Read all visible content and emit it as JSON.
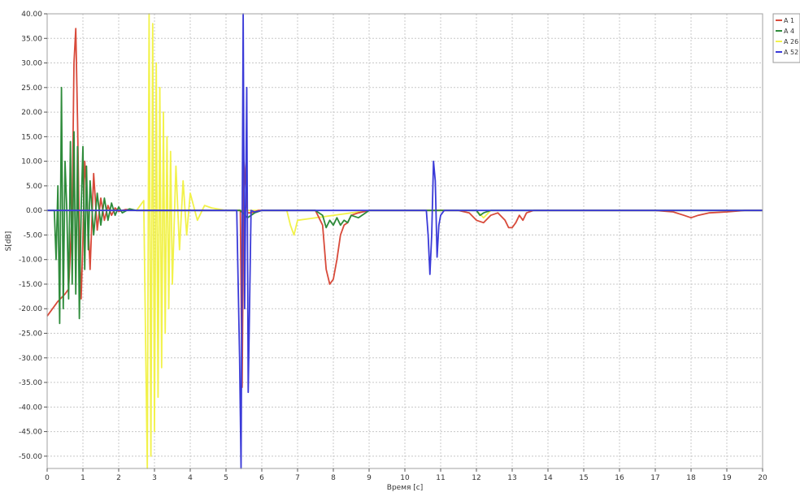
{
  "chart_data": {
    "type": "line",
    "title": "",
    "xlabel": "Время [c]",
    "ylabel": "S[dB]",
    "xlim": [
      0,
      20
    ],
    "ylim": [
      -52.5,
      40
    ],
    "x_ticks": [
      0,
      1,
      2,
      3,
      4,
      5,
      6,
      7,
      8,
      9,
      10,
      11,
      12,
      13,
      14,
      15,
      16,
      17,
      18,
      19,
      20
    ],
    "y_ticks": [
      40,
      35,
      30,
      25,
      20,
      15,
      10,
      5,
      0,
      -5,
      -10,
      -15,
      -20,
      -25,
      -30,
      -35,
      -40,
      -45,
      -50
    ],
    "y_tick_labels": [
      "40.00",
      "35.00",
      "30.00",
      "25.00",
      "20.00",
      "15.00",
      "10.00",
      "5.00",
      "0.00",
      "-5.00",
      "-10.00",
      "-15.00",
      "-20.00",
      "-25.00",
      "-30.00",
      "-35.00",
      "-40.00",
      "-45.00",
      "-50.00"
    ],
    "grid": true,
    "legend_position": "top-right-outside",
    "series": [
      {
        "name": "A 1",
        "color": "#d84a3a",
        "x": [
          0,
          0.3,
          0.5,
          0.6,
          0.7,
          0.75,
          0.8,
          0.85,
          0.9,
          0.95,
          1.0,
          1.05,
          1.1,
          1.2,
          1.3,
          1.4,
          1.5,
          1.6,
          1.7,
          1.8,
          1.9,
          2.0,
          2.2,
          2.5,
          3.0,
          5.4,
          5.45,
          5.5,
          5.6,
          5.7,
          5.9,
          6.5,
          7.0,
          7.5,
          7.7,
          7.8,
          7.9,
          8.0,
          8.1,
          8.2,
          8.3,
          8.4,
          8.5,
          8.7,
          9.0,
          10.0,
          11.0,
          11.5,
          11.8,
          12.0,
          12.2,
          12.4,
          12.6,
          12.8,
          12.9,
          13.0,
          13.1,
          13.2,
          13.3,
          13.4,
          13.6,
          14.0,
          15.0,
          16.0,
          17.0,
          17.5,
          17.8,
          18.0,
          18.2,
          18.5,
          19.0,
          19.5,
          20.0
        ],
        "y": [
          -21.5,
          -18.5,
          -17.0,
          -16.0,
          0,
          30.0,
          37.0,
          18.0,
          -5.0,
          -18.0,
          -6.0,
          10.0,
          5.0,
          -12.0,
          7.5,
          -4.0,
          2.5,
          -2.0,
          1.0,
          -1.0,
          0.5,
          -0.2,
          0.2,
          0,
          0,
          0,
          -36.0,
          10.0,
          -0.5,
          -0.5,
          0,
          0,
          0,
          0,
          -3.0,
          -12.0,
          -15.0,
          -14.0,
          -10.0,
          -5.0,
          -3.0,
          -2.5,
          -1.0,
          -0.5,
          0,
          0,
          0,
          0,
          -0.5,
          -2.0,
          -2.5,
          -1.0,
          -0.5,
          -2.0,
          -3.5,
          -3.5,
          -2.5,
          -1.0,
          -2.0,
          -0.5,
          0,
          0,
          0,
          0,
          0,
          -0.3,
          -1.0,
          -1.5,
          -1.0,
          -0.5,
          -0.3,
          0,
          0
        ]
      },
      {
        "name": "A 4",
        "color": "#2e8b3a",
        "x": [
          0,
          0.2,
          0.25,
          0.3,
          0.35,
          0.4,
          0.45,
          0.5,
          0.55,
          0.6,
          0.65,
          0.7,
          0.75,
          0.8,
          0.85,
          0.9,
          0.95,
          1.0,
          1.05,
          1.1,
          1.15,
          1.2,
          1.3,
          1.4,
          1.5,
          1.6,
          1.7,
          1.8,
          1.9,
          2.0,
          2.1,
          2.3,
          2.5,
          3.0,
          5.4,
          5.6,
          5.8,
          6.0,
          7.0,
          7.5,
          7.7,
          7.8,
          7.9,
          8.0,
          8.1,
          8.2,
          8.3,
          8.4,
          8.5,
          8.7,
          8.9,
          9.0,
          10.0,
          12.0,
          12.1,
          12.2,
          12.4,
          13.0,
          14.0,
          20.0
        ],
        "y": [
          0,
          0,
          -10.0,
          5.0,
          -23.0,
          25.0,
          -20.0,
          10.0,
          0,
          -18.0,
          14.0,
          -15.0,
          16.0,
          -17.0,
          13.0,
          -22.0,
          0,
          13.0,
          -12.0,
          9.0,
          -8.0,
          6.0,
          -5.0,
          3.5,
          -3.0,
          2.5,
          -2.0,
          1.5,
          -1.0,
          0.7,
          -0.5,
          0.3,
          0,
          0,
          0,
          -1.5,
          -0.5,
          0,
          0,
          0,
          -1.0,
          -3.5,
          -2.0,
          -3.0,
          -1.5,
          -3.0,
          -2.0,
          -2.5,
          -1.0,
          -1.5,
          -0.5,
          0,
          0,
          0,
          -1.0,
          -0.5,
          0,
          0,
          0,
          0
        ]
      },
      {
        "name": "A 26",
        "color": "#f2f24a",
        "x": [
          0,
          2.5,
          2.7,
          2.8,
          2.85,
          2.9,
          2.95,
          3.0,
          3.05,
          3.1,
          3.15,
          3.2,
          3.25,
          3.3,
          3.35,
          3.4,
          3.45,
          3.5,
          3.6,
          3.7,
          3.8,
          3.9,
          4.0,
          4.2,
          4.4,
          4.6,
          5.0,
          6.0,
          6.7,
          6.8,
          6.9,
          7.0,
          9.0,
          11.0,
          12.0,
          12.2,
          12.4,
          20.0
        ],
        "y": [
          0,
          0,
          2.0,
          -52.5,
          40.0,
          -50.0,
          38.0,
          -45.0,
          30.0,
          -38.0,
          25.0,
          -32.0,
          20.0,
          -25.0,
          15.0,
          -20.0,
          12.0,
          -15.0,
          9.0,
          -8.0,
          6.0,
          -5.0,
          3.5,
          -2.0,
          1.0,
          0.5,
          0,
          0,
          0,
          -3.0,
          -5.0,
          -2.0,
          0,
          0,
          0,
          -1.5,
          0,
          0
        ]
      },
      {
        "name": "A 52",
        "color": "#3a3ad8",
        "x": [
          0,
          2.0,
          5.3,
          5.38,
          5.42,
          5.48,
          5.52,
          5.58,
          5.62,
          5.7,
          5.8,
          6.0,
          10.0,
          10.6,
          10.65,
          10.7,
          10.75,
          10.8,
          10.85,
          10.9,
          10.95,
          11.0,
          11.1,
          11.3,
          12.0,
          20.0
        ],
        "y": [
          0,
          0,
          0,
          -30.0,
          -52.5,
          40.0,
          -20.0,
          25.0,
          -37.0,
          0,
          -0.3,
          0,
          0,
          0,
          -5.0,
          -13.0,
          -5.0,
          10.0,
          6.0,
          -9.5,
          -3.0,
          -1.0,
          0,
          0,
          0,
          0
        ]
      }
    ]
  }
}
